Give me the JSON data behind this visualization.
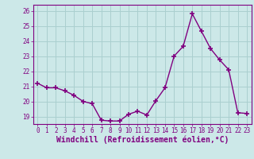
{
  "x": [
    0,
    1,
    2,
    3,
    4,
    5,
    6,
    7,
    8,
    9,
    10,
    11,
    12,
    13,
    14,
    15,
    16,
    17,
    18,
    19,
    20,
    21,
    22,
    23
  ],
  "y": [
    21.2,
    20.9,
    20.9,
    20.7,
    20.4,
    20.0,
    19.85,
    18.75,
    18.7,
    18.7,
    19.15,
    19.35,
    19.1,
    20.05,
    20.9,
    23.0,
    23.65,
    25.8,
    24.65,
    23.5,
    22.75,
    22.1,
    19.25,
    19.2
  ],
  "line_color": "#800080",
  "marker": "+",
  "markersize": 4,
  "linewidth": 1,
  "xlabel": "Windchill (Refroidissement éolien,°C)",
  "xlabel_fontsize": 7,
  "ylim": [
    18.5,
    26.4
  ],
  "xlim": [
    -0.5,
    23.5
  ],
  "yticks": [
    19,
    20,
    21,
    22,
    23,
    24,
    25,
    26
  ],
  "xticks": [
    0,
    1,
    2,
    3,
    4,
    5,
    6,
    7,
    8,
    9,
    10,
    11,
    12,
    13,
    14,
    15,
    16,
    17,
    18,
    19,
    20,
    21,
    22,
    23
  ],
  "grid_color": "#aacfcf",
  "bg_color": "#cce8e8",
  "tick_color": "#800080",
  "axis_color": "#800080",
  "xlabel_color": "#800080",
  "tick_fontsize": 5.5,
  "xlabel_fontweight": "bold"
}
